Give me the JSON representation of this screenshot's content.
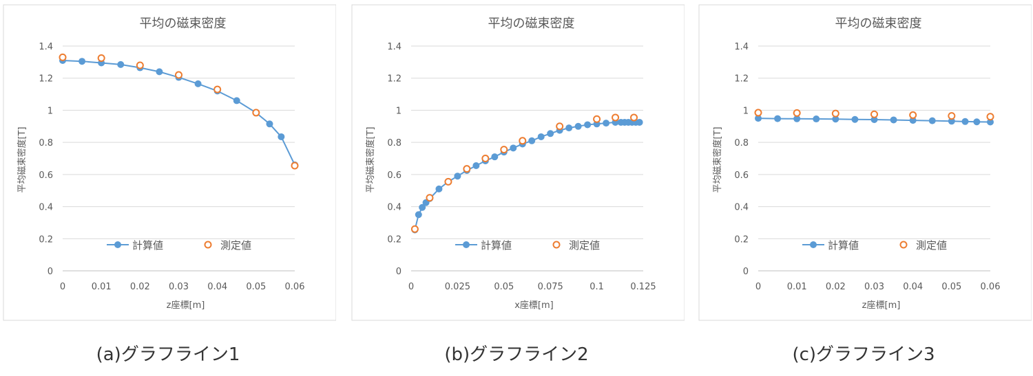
{
  "chart_data": [
    {
      "type": "line",
      "caption": "(a)グラフライン1",
      "title": "平均の磁束密度",
      "xlabel": "z座標[m]",
      "ylabel": "平均磁束密度[T]",
      "xlim": [
        0,
        0.06
      ],
      "ylim": [
        0,
        1.4
      ],
      "xticks": [
        0,
        0.01,
        0.02,
        0.03,
        0.04,
        0.05,
        0.06
      ],
      "xtick_labels": [
        "0",
        "0.01",
        "0.02",
        "0.03",
        "0.04",
        "0.05",
        "0.06"
      ],
      "yticks": [
        0,
        0.2,
        0.4,
        0.6,
        0.8,
        1,
        1.2,
        1.4
      ],
      "ytick_labels": [
        "0",
        "0.2",
        "0.4",
        "0.6",
        "0.8",
        "1",
        "1.2",
        "1.4"
      ],
      "legend": "inside-bottom-center",
      "grid": true,
      "series": [
        {
          "name": "計算値",
          "style": "line-marker",
          "color": "#5b9bd5",
          "x": [
            0,
            0.005,
            0.01,
            0.015,
            0.02,
            0.025,
            0.03,
            0.035,
            0.04,
            0.045,
            0.05,
            0.0535,
            0.0565,
            0.06
          ],
          "y": [
            1.31,
            1.305,
            1.295,
            1.285,
            1.265,
            1.24,
            1.205,
            1.165,
            1.12,
            1.06,
            0.985,
            0.915,
            0.835,
            0.66
          ]
        },
        {
          "name": "測定値",
          "style": "open-marker",
          "color": "#ed7d31",
          "x": [
            0,
            0.01,
            0.02,
            0.03,
            0.04,
            0.05,
            0.06
          ],
          "y": [
            1.33,
            1.325,
            1.28,
            1.22,
            1.13,
            0.985,
            0.655
          ]
        }
      ]
    },
    {
      "type": "line",
      "caption": "(b)グラフライン2",
      "title": "平均の磁束密度",
      "xlabel": "x座標[m]",
      "ylabel": "平均磁束密度[T]",
      "xlim": [
        0,
        0.125
      ],
      "ylim": [
        0,
        1.4
      ],
      "xticks": [
        0,
        0.025,
        0.05,
        0.075,
        0.1,
        0.125
      ],
      "xtick_labels": [
        "0",
        "0.025",
        "0.05",
        "0.075",
        "0.1",
        "0.125"
      ],
      "yticks": [
        0,
        0.2,
        0.4,
        0.6,
        0.8,
        1,
        1.2,
        1.4
      ],
      "ytick_labels": [
        "0",
        "0.2",
        "0.4",
        "0.6",
        "0.8",
        "1",
        "1.2",
        "1.4"
      ],
      "legend": "inside-bottom-center",
      "grid": true,
      "series": [
        {
          "name": "計算値",
          "style": "line-marker",
          "color": "#5b9bd5",
          "x": [
            0.002,
            0.004,
            0.006,
            0.008,
            0.01,
            0.015,
            0.02,
            0.025,
            0.03,
            0.035,
            0.04,
            0.045,
            0.05,
            0.055,
            0.06,
            0.065,
            0.07,
            0.075,
            0.08,
            0.085,
            0.09,
            0.095,
            0.1,
            0.105,
            0.11,
            0.113,
            0.115,
            0.117,
            0.119,
            0.121,
            0.123
          ],
          "y": [
            0.255,
            0.35,
            0.395,
            0.425,
            0.45,
            0.51,
            0.555,
            0.59,
            0.625,
            0.655,
            0.685,
            0.71,
            0.74,
            0.765,
            0.79,
            0.81,
            0.835,
            0.855,
            0.875,
            0.89,
            0.9,
            0.91,
            0.915,
            0.92,
            0.925,
            0.925,
            0.925,
            0.925,
            0.925,
            0.925,
            0.925
          ]
        },
        {
          "name": "測定値",
          "style": "open-marker",
          "color": "#ed7d31",
          "x": [
            0.002,
            0.01,
            0.02,
            0.03,
            0.04,
            0.05,
            0.06,
            0.08,
            0.1,
            0.11,
            0.12
          ],
          "y": [
            0.26,
            0.455,
            0.555,
            0.635,
            0.7,
            0.755,
            0.81,
            0.9,
            0.945,
            0.955,
            0.955
          ]
        }
      ]
    },
    {
      "type": "line",
      "caption": "(c)グラフライン3",
      "title": "平均の磁束密度",
      "xlabel": "z座標[m]",
      "ylabel": "平均磁束密度[T]",
      "xlim": [
        0,
        0.06
      ],
      "ylim": [
        0,
        1.4
      ],
      "xticks": [
        0,
        0.01,
        0.02,
        0.03,
        0.04,
        0.05,
        0.06
      ],
      "xtick_labels": [
        "0",
        "0.01",
        "0.02",
        "0.03",
        "0.04",
        "0.05",
        "0.06"
      ],
      "yticks": [
        0,
        0.2,
        0.4,
        0.6,
        0.8,
        1,
        1.2,
        1.4
      ],
      "ytick_labels": [
        "0",
        "0.2",
        "0.4",
        "0.6",
        "0.8",
        "1",
        "1.2",
        "1.4"
      ],
      "legend": "inside-bottom-center",
      "grid": true,
      "series": [
        {
          "name": "計算値",
          "style": "line-marker",
          "color": "#5b9bd5",
          "x": [
            0,
            0.005,
            0.01,
            0.015,
            0.02,
            0.025,
            0.03,
            0.035,
            0.04,
            0.045,
            0.05,
            0.0535,
            0.0565,
            0.06
          ],
          "y": [
            0.95,
            0.948,
            0.947,
            0.946,
            0.945,
            0.943,
            0.942,
            0.94,
            0.937,
            0.935,
            0.932,
            0.93,
            0.928,
            0.927
          ]
        },
        {
          "name": "測定値",
          "style": "open-marker",
          "color": "#ed7d31",
          "x": [
            0,
            0.01,
            0.02,
            0.03,
            0.04,
            0.05,
            0.06
          ],
          "y": [
            0.985,
            0.983,
            0.98,
            0.975,
            0.97,
            0.965,
            0.96
          ]
        }
      ]
    }
  ]
}
